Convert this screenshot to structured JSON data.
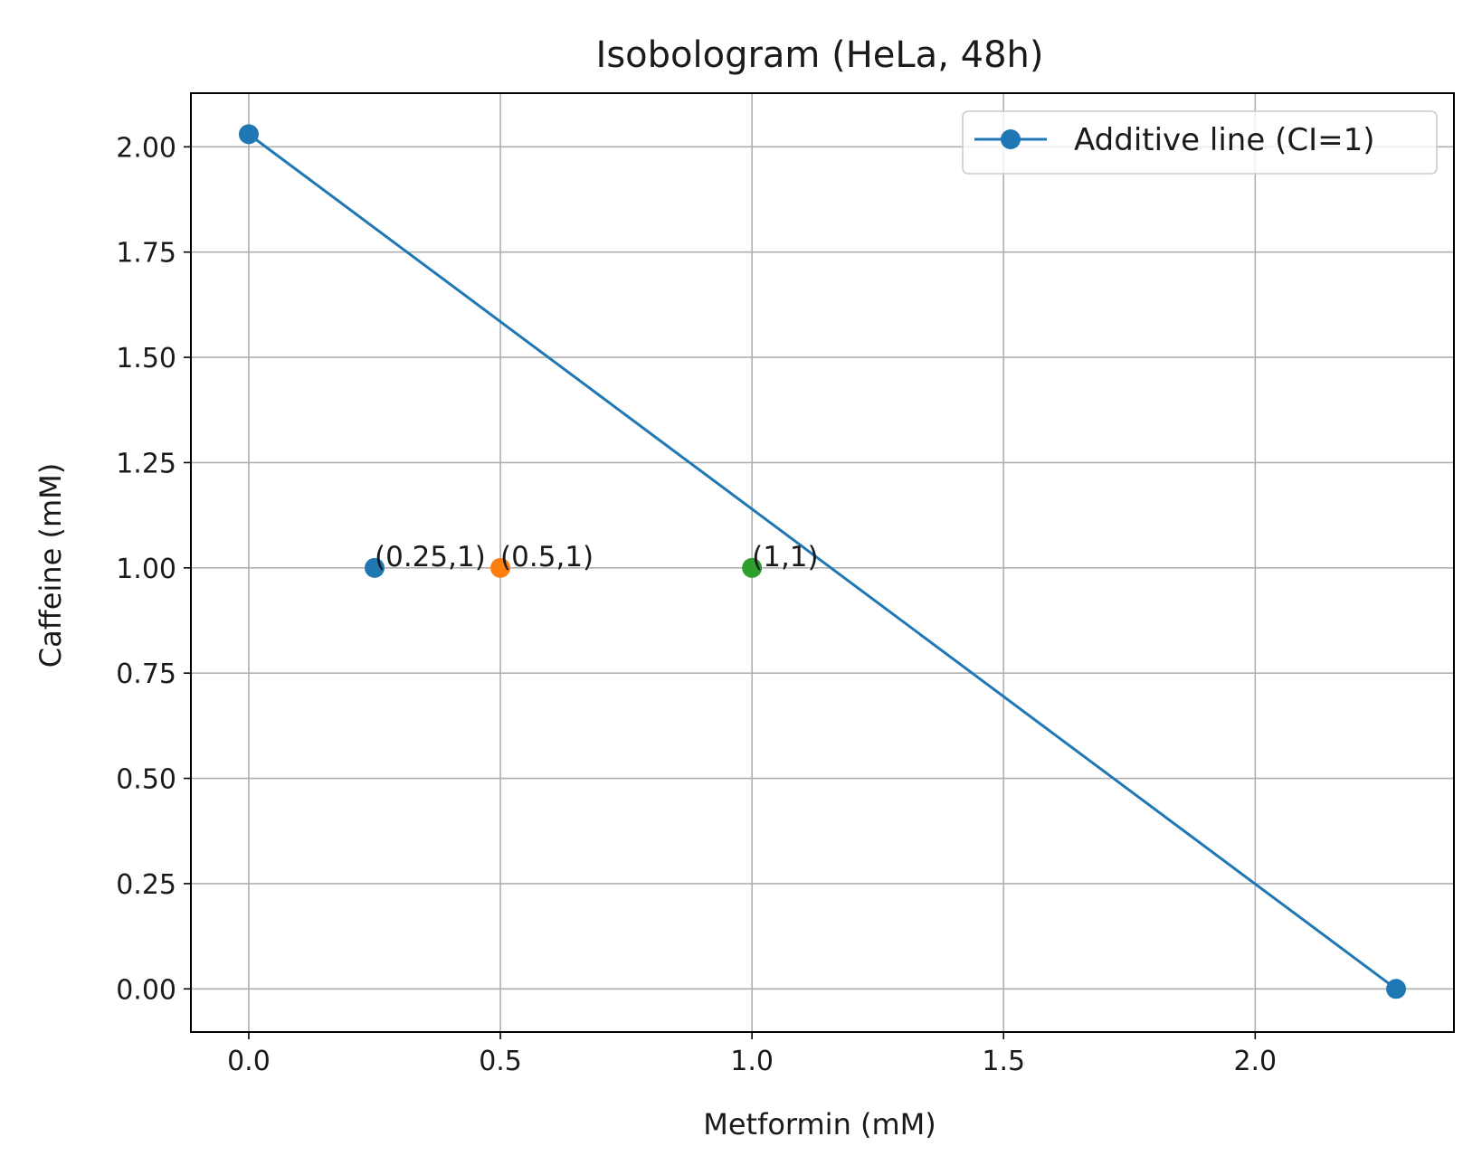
{
  "chart_data": {
    "type": "scatter",
    "title": "Isobologram (HeLa, 48h)",
    "xlabel": "Metformin (mM)",
    "ylabel": "Caffeine (mM)",
    "xlim": [
      -0.115,
      2.395
    ],
    "ylim": [
      -0.1025,
      2.1275
    ],
    "grid": true,
    "legend": "top-right",
    "xticks": [
      0.0,
      0.5,
      1.0,
      1.5,
      2.0
    ],
    "xtick_labels": [
      "0.0",
      "0.5",
      "1.0",
      "1.5",
      "2.0"
    ],
    "yticks": [
      0.0,
      0.25,
      0.5,
      0.75,
      1.0,
      1.25,
      1.5,
      1.75,
      2.0
    ],
    "ytick_labels": [
      "0.00",
      "0.25",
      "0.50",
      "0.75",
      "1.00",
      "1.25",
      "1.50",
      "1.75",
      "2.00"
    ],
    "series": [
      {
        "name": "Additive line (CI=1)",
        "kind": "line-marker",
        "color": "#1f77b4",
        "points": [
          {
            "x": 0.0,
            "y": 2.03
          },
          {
            "x": 2.28,
            "y": 0.0
          }
        ]
      }
    ],
    "points": [
      {
        "x": 0.25,
        "y": 1.0,
        "label": "(0.25,1)",
        "color": "#1f77b4"
      },
      {
        "x": 0.5,
        "y": 1.0,
        "label": "(0.5,1)",
        "color": "#ff7f0e"
      },
      {
        "x": 1.0,
        "y": 1.0,
        "label": "(1,1)",
        "color": "#2ca02c"
      }
    ]
  }
}
